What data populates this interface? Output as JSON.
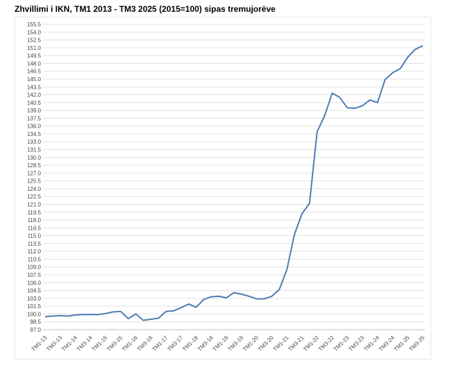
{
  "title": "Zhvillimi i IKN, TM1 2013 - TM3 2025 (2015=100) sipas tremujorëve",
  "chart_data": {
    "type": "line",
    "title": "Zhvillimi i IKN, TM1 2013 - TM3 2025 (2015=100) sipas tremujorëve",
    "xlabel": "",
    "ylabel": "",
    "ylim": [
      97.0,
      155.5
    ],
    "yticks": [
      97.0,
      98.5,
      100.0,
      101.5,
      103.0,
      104.5,
      106.0,
      107.5,
      109.0,
      110.5,
      112.0,
      113.5,
      115.0,
      116.5,
      118.0,
      119.5,
      121.0,
      122.5,
      124.0,
      125.5,
      127.0,
      128.5,
      130.0,
      131.5,
      133.0,
      134.5,
      136.0,
      137.5,
      139.0,
      140.5,
      142.0,
      143.5,
      145.0,
      146.5,
      148.0,
      149.5,
      151.0,
      152.5,
      154.0,
      155.5
    ],
    "grid": true,
    "legend": "none",
    "line_color": "#4f7bb5",
    "categories": [
      "TM1-13",
      "TM2-13",
      "TM3-13",
      "TM4-13",
      "TM1-14",
      "TM2-14",
      "TM3-14",
      "TM4-14",
      "TM1-15",
      "TM2-15",
      "TM3-15",
      "TM4-15",
      "TM1-16",
      "TM2-16",
      "TM3-16",
      "TM4-16",
      "TM1-17",
      "TM2-17",
      "TM3-17",
      "TM4-17",
      "TM1-18",
      "TM2-18",
      "TM3-18",
      "TM4-18",
      "TM1-19",
      "TM2-19",
      "TM3-19",
      "TM4-19",
      "TM1-20",
      "TM2-20",
      "TM3-20",
      "TM4-20",
      "TM1-21",
      "TM2-21",
      "TM3-21",
      "TM4-21",
      "TM1-22",
      "TM2-22",
      "TM3-22",
      "TM4-22",
      "TM1-23",
      "TM2-23",
      "TM3-23",
      "TM4-23",
      "TM1-24",
      "TM2-24",
      "TM3-24",
      "TM4-24",
      "TM1-25",
      "TM2-25",
      "TM3-25"
    ],
    "x_tick_labels": [
      "TM1-13",
      "TM3-13",
      "TM1-14",
      "TM3-14",
      "TM1-15",
      "TM3-15",
      "TM1-16",
      "TM3-16",
      "TM1-17",
      "TM3-17",
      "TM1-18",
      "TM3-18",
      "TM1-19",
      "TM3-19",
      "TM1-20",
      "TM3-20",
      "TM1-21",
      "TM3-21",
      "TM1-22",
      "TM3-22",
      "TM1-23",
      "TM3-23",
      "TM1-24",
      "TM3-24",
      "TM1-25",
      "TM3-25"
    ],
    "values": [
      99.5,
      99.6,
      99.7,
      99.6,
      99.8,
      99.9,
      99.9,
      99.9,
      100.1,
      100.4,
      100.5,
      99.1,
      100.0,
      98.8,
      99.0,
      99.2,
      100.5,
      100.6,
      101.2,
      101.9,
      101.3,
      102.8,
      103.3,
      103.4,
      103.1,
      104.1,
      103.8,
      103.4,
      102.9,
      102.9,
      103.4,
      104.7,
      108.5,
      115.2,
      119.2,
      121.2,
      134.9,
      138.0,
      142.3,
      141.5,
      139.5,
      139.4,
      139.9,
      141.0,
      140.5,
      144.9,
      146.2,
      147.0,
      149.2,
      150.7,
      151.4
    ]
  }
}
